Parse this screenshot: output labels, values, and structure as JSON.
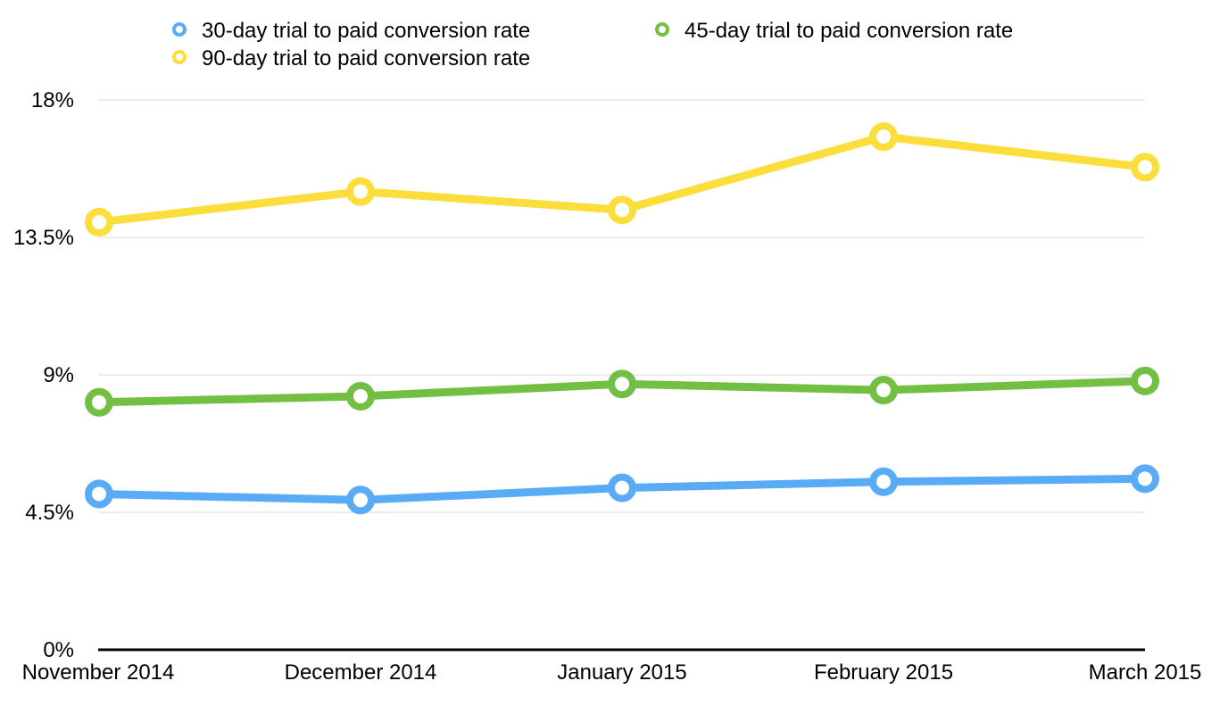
{
  "chart_data": {
    "type": "line",
    "categories": [
      "November 2014",
      "December 2014",
      "January 2015",
      "February 2015",
      "March 2015"
    ],
    "series": [
      {
        "name": "30-day trial to paid conversion rate",
        "color": "#5aabf5",
        "values": [
          5.1,
          4.9,
          5.3,
          5.5,
          5.6
        ]
      },
      {
        "name": "45-day trial to paid conversion rate",
        "color": "#72bf44",
        "values": [
          8.1,
          8.3,
          8.7,
          8.5,
          8.8
        ]
      },
      {
        "name": "90-day trial to paid conversion rate",
        "color": "#fbde3b",
        "values": [
          14.0,
          15.0,
          14.4,
          16.8,
          15.8
        ]
      }
    ],
    "yticks": [
      {
        "value": 0,
        "label": "0%"
      },
      {
        "value": 4.5,
        "label": "4.5%"
      },
      {
        "value": 9,
        "label": "9%"
      },
      {
        "value": 13.5,
        "label": "13.5%"
      },
      {
        "value": 18,
        "label": "18%"
      }
    ],
    "ylim": [
      0,
      18
    ],
    "grid": true,
    "legend_position": "top"
  }
}
